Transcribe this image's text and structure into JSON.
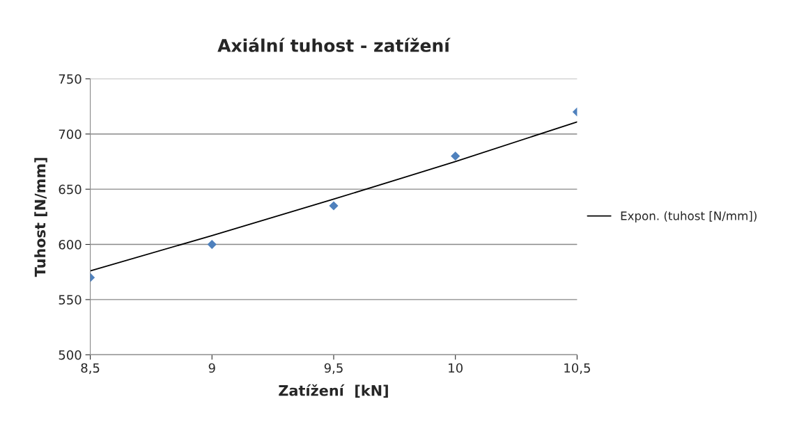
{
  "chart_data": {
    "type": "scatter",
    "title": "Axiální tuhost - zatížení",
    "xlabel": "Zatížení  [kN]",
    "ylabel": "Tuhost [N/mm]",
    "series": [
      {
        "color": "#4f81bd",
        "marker": "diamond",
        "x": [
          8.5,
          9,
          9.5,
          10,
          10.5
        ],
        "values": [
          570,
          600,
          635,
          680,
          720
        ]
      },
      {
        "type": "line",
        "name": "Expon. (tuhost [N/mm])",
        "color": "#000000",
        "marker": "none",
        "x": [
          8.5,
          9,
          9.5,
          10,
          10.5
        ],
        "values": [
          576,
          608,
          641,
          675,
          711
        ]
      }
    ],
    "xlim": [
      8.5,
      10.5
    ],
    "xticks": [
      {
        "value": 8.5,
        "label": "8,5"
      },
      9,
      {
        "value": 9.5,
        "label": "9,5"
      },
      10,
      {
        "value": 10.5,
        "label": "10,5"
      }
    ],
    "ylim": [
      500,
      750
    ],
    "yticks": [
      500,
      550,
      600,
      650,
      700,
      750
    ],
    "grid": "y",
    "legend": "right"
  }
}
